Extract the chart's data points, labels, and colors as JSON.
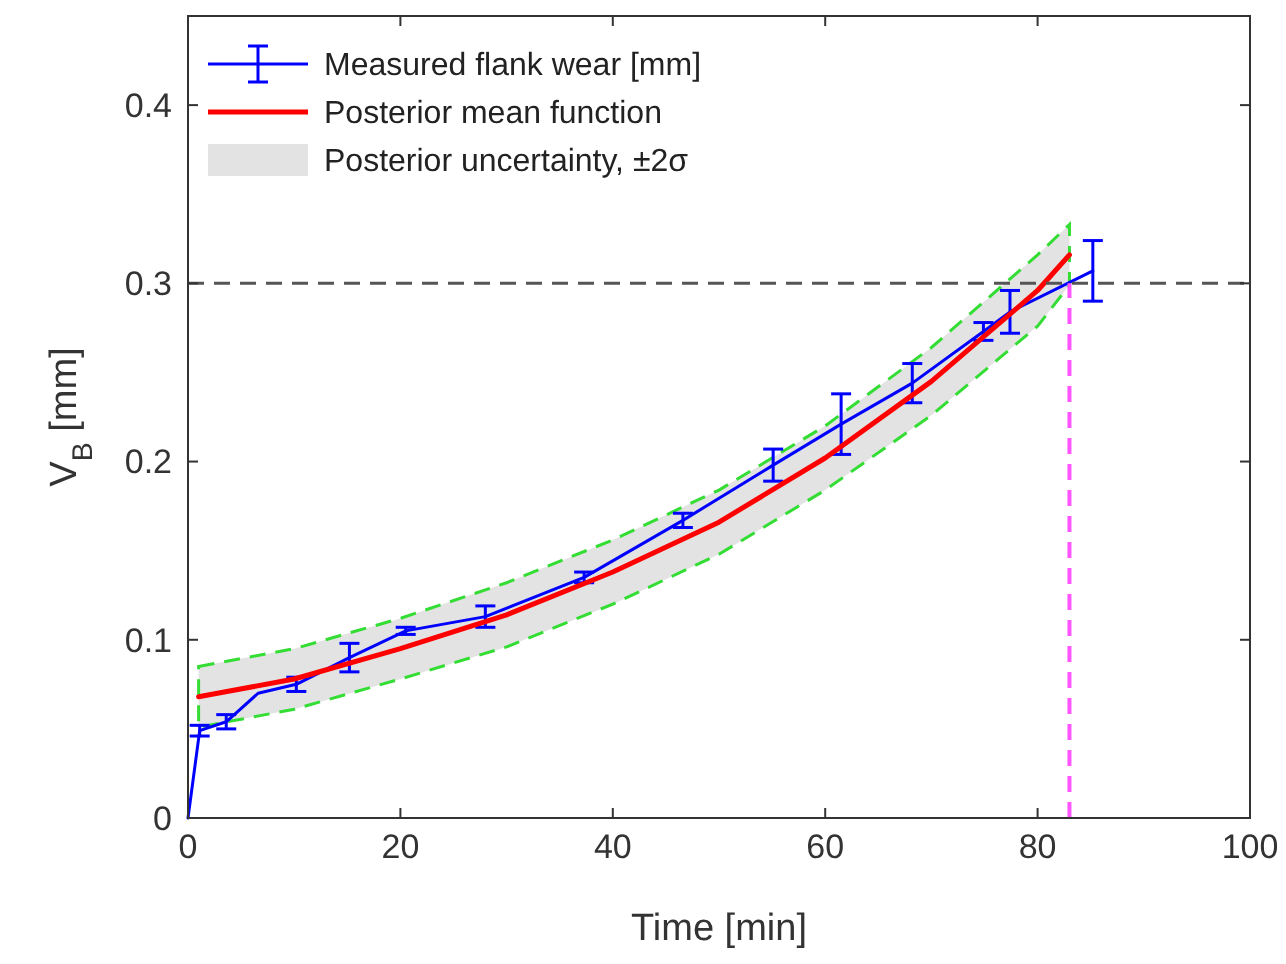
{
  "chart_data": {
    "type": "line",
    "xlabel": "Time [min]",
    "ylabel": "V$_{B}$ [mm]",
    "xlim": [
      0,
      100
    ],
    "ylim": [
      0,
      0.45
    ],
    "xticks": [
      0,
      20,
      40,
      60,
      80,
      100
    ],
    "yticks": [
      0,
      0.1,
      0.2,
      0.3,
      0.4
    ],
    "legend": "top left",
    "marker": "none",
    "annotations": [
      "Posterior uncertainty, ±2σ"
    ],
    "series": [
      {
        "name": "Measured flank wear [mm]",
        "color": "#0000ff",
        "x": [
          0,
          1.1,
          3.6,
          6.6,
          10.2,
          15.2,
          20.5,
          28,
          37.3,
          46.6,
          55.1,
          61.5,
          68.2,
          74.9,
          77.4,
          85.2
        ],
        "values": [
          0,
          0.049,
          0.054,
          0.07,
          0.075,
          0.09,
          0.105,
          0.113,
          0.135,
          0.167,
          0.198,
          0.221,
          0.244,
          0.273,
          0.284,
          0.307
        ],
        "errors": [
          null,
          0.003,
          0.004,
          null,
          0.004,
          0.008,
          0.002,
          0.006,
          0.003,
          0.004,
          0.009,
          0.017,
          0.011,
          0.005,
          0.012,
          0.017
        ]
      },
      {
        "name": "Posterior mean function",
        "color": "#ff0000",
        "x": [
          1,
          10,
          20,
          30,
          40,
          50,
          60,
          70,
          80,
          83
        ],
        "values": [
          0.068,
          0.078,
          0.095,
          0.114,
          0.138,
          0.166,
          0.202,
          0.245,
          0.296,
          0.316
        ],
        "lower": [
          0.051,
          0.061,
          0.078,
          0.096,
          0.12,
          0.148,
          0.184,
          0.226,
          0.276,
          0.299
        ],
        "upper": [
          0.085,
          0.095,
          0.112,
          0.132,
          0.156,
          0.184,
          0.22,
          0.264,
          0.316,
          0.333
        ]
      }
    ],
    "ref_lines": [
      {
        "axis": "y",
        "value": 0.3,
        "color": "#555555",
        "line_style": "dashed"
      },
      {
        "axis": "x",
        "value": 83,
        "color": "#ff55ff",
        "line_style": "dashed"
      }
    ]
  }
}
